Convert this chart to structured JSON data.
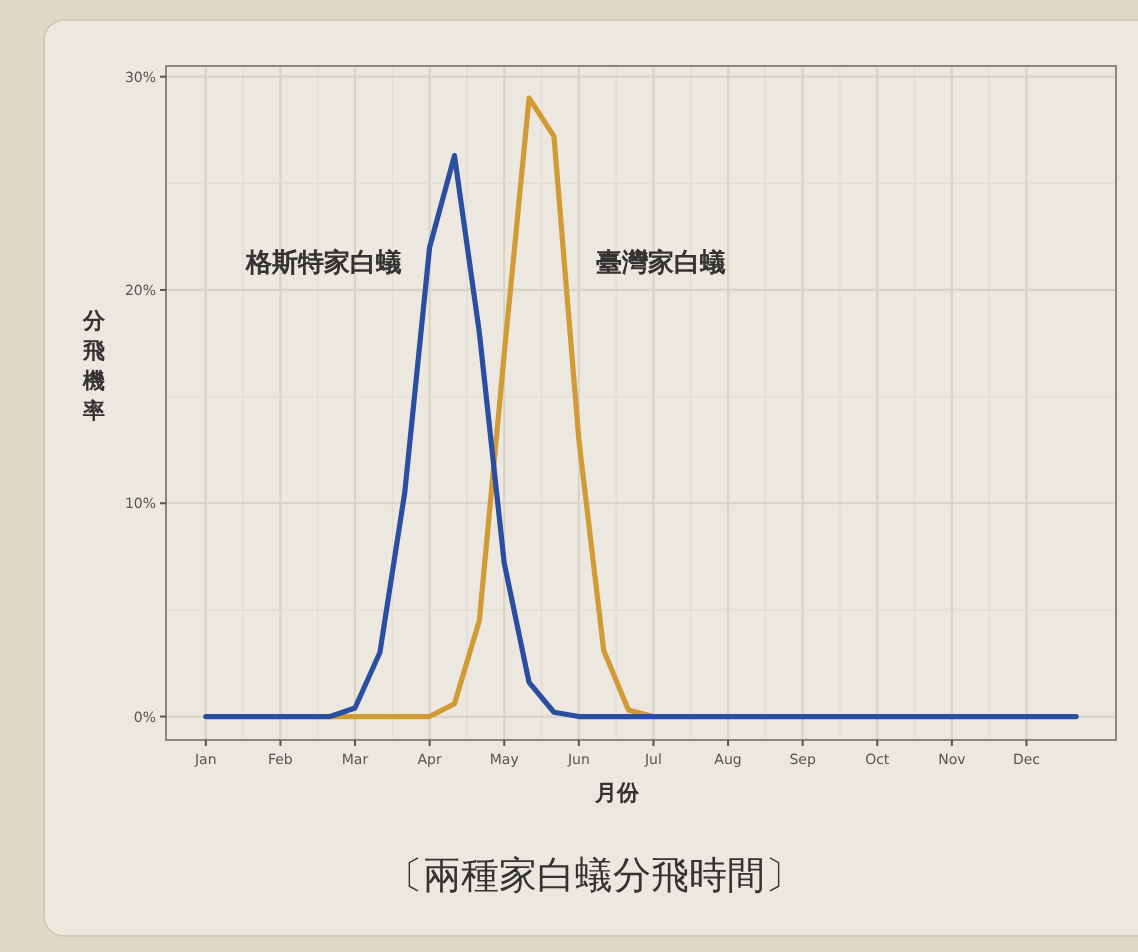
{
  "chart_data": {
    "type": "line",
    "xlabel": "月份",
    "ylabel": "分飛機率",
    "annotations": [
      "〔兩種家白蟻分飛時間〕"
    ],
    "categories": [
      "Jan",
      null,
      null,
      "Feb",
      null,
      null,
      "Mar",
      null,
      null,
      "Apr",
      null,
      null,
      "May",
      null,
      null,
      "Jun",
      null,
      null,
      "Jul",
      null,
      null,
      "Aug",
      null,
      null,
      "Sep",
      null,
      null,
      "Oct",
      null,
      null,
      "Nov",
      null,
      null,
      "Dec",
      null,
      null
    ],
    "series": [
      {
        "name": "格斯特家白蟻",
        "color": "#2a4fa0",
        "values": [
          0,
          0,
          0,
          0,
          0,
          0,
          0.4,
          3,
          10.5,
          22,
          26.3,
          18,
          7.2,
          1.6,
          0.2,
          0,
          0,
          0,
          0,
          0,
          0,
          0,
          0,
          0,
          0,
          0,
          0,
          0,
          0,
          0,
          0,
          0,
          0,
          0,
          0,
          0
        ]
      },
      {
        "name": "臺灣家白蟻",
        "color": "#d19a35",
        "values": [
          null,
          null,
          null,
          null,
          null,
          0,
          0,
          0,
          0,
          0,
          0.6,
          4.5,
          17,
          29,
          27.2,
          13,
          3.1,
          0.3,
          0,
          null,
          null,
          null,
          null,
          null,
          null,
          null,
          null,
          null,
          null,
          null,
          null,
          null,
          null,
          null,
          null,
          null
        ]
      }
    ],
    "ylim": [
      -1.1,
      30.5
    ],
    "yticks": [
      {
        "value": 0,
        "label": "0%"
      },
      {
        "value": 10,
        "label": "10%"
      },
      {
        "value": 20,
        "label": "20%"
      },
      {
        "value": 30,
        "label": "30%"
      }
    ],
    "grid": true,
    "legend": false,
    "marker": "none",
    "line_style": "solid"
  }
}
